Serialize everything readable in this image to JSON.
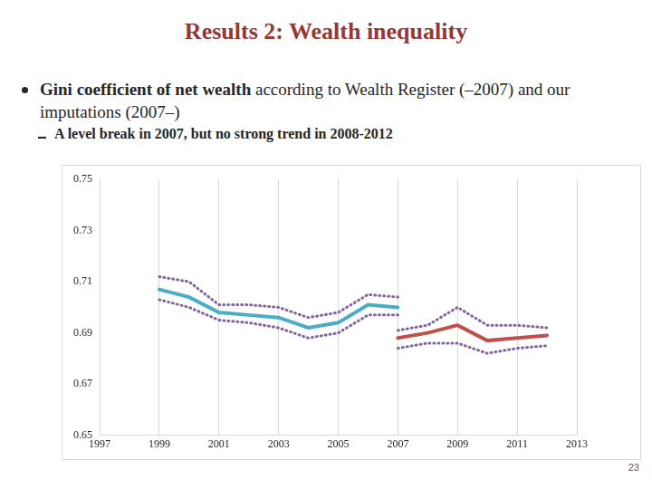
{
  "slide": {
    "title": "Results 2: Wealth inequality",
    "bullet": [
      "Gini coefficient of net wealth",
      "according to Wealth Register (–2007) and our imputations (2007–)"
    ],
    "sub_bullet": "A level break in 2007, but no strong trend in 2008-2012",
    "page_number": "23"
  },
  "chart_data": {
    "type": "line",
    "x": [
      1999,
      2000,
      2001,
      2002,
      2003,
      2004,
      2005,
      2006,
      2007,
      2008,
      2009,
      2010,
      2011,
      2012
    ],
    "series": [
      {
        "color": "#8064a2",
        "line_style": "dotted",
        "values": [
          0.712,
          0.71,
          0.701,
          0.701,
          0.7,
          0.696,
          0.698,
          0.705,
          0.704,
          null,
          null,
          null,
          null,
          null
        ]
      },
      {
        "color": "#8064a2",
        "line_style": "dotted",
        "values": [
          0.703,
          0.7,
          0.695,
          0.694,
          0.692,
          0.688,
          0.69,
          0.697,
          0.697,
          null,
          null,
          null,
          null,
          null
        ]
      },
      {
        "color": "#4bacc6",
        "line_style": "solid",
        "values": [
          0.707,
          0.704,
          0.698,
          0.697,
          0.696,
          0.692,
          0.694,
          0.701,
          0.7,
          null,
          null,
          null,
          null,
          null
        ]
      },
      {
        "color": "#8064a2",
        "line_style": "dotted",
        "values": [
          null,
          null,
          null,
          null,
          null,
          null,
          null,
          null,
          0.691,
          0.693,
          0.7,
          0.693,
          0.693,
          0.692
        ]
      },
      {
        "color": "#8064a2",
        "line_style": "dotted",
        "values": [
          null,
          null,
          null,
          null,
          null,
          null,
          null,
          null,
          0.684,
          0.686,
          0.686,
          0.682,
          0.684,
          0.685
        ]
      },
      {
        "color": "#c0504d",
        "line_style": "solid",
        "values": [
          null,
          null,
          null,
          null,
          null,
          null,
          null,
          null,
          0.688,
          0.69,
          0.693,
          0.687,
          0.688,
          0.689
        ]
      }
    ],
    "xlim": [
      1997,
      2013
    ],
    "xticks": [
      1997,
      1999,
      2001,
      2003,
      2005,
      2007,
      2009,
      2011,
      2013
    ],
    "ylim": [
      0.65,
      0.75
    ],
    "yticks": [
      0.65,
      0.67,
      0.69,
      0.71,
      0.73,
      0.75
    ],
    "grid": "x"
  }
}
